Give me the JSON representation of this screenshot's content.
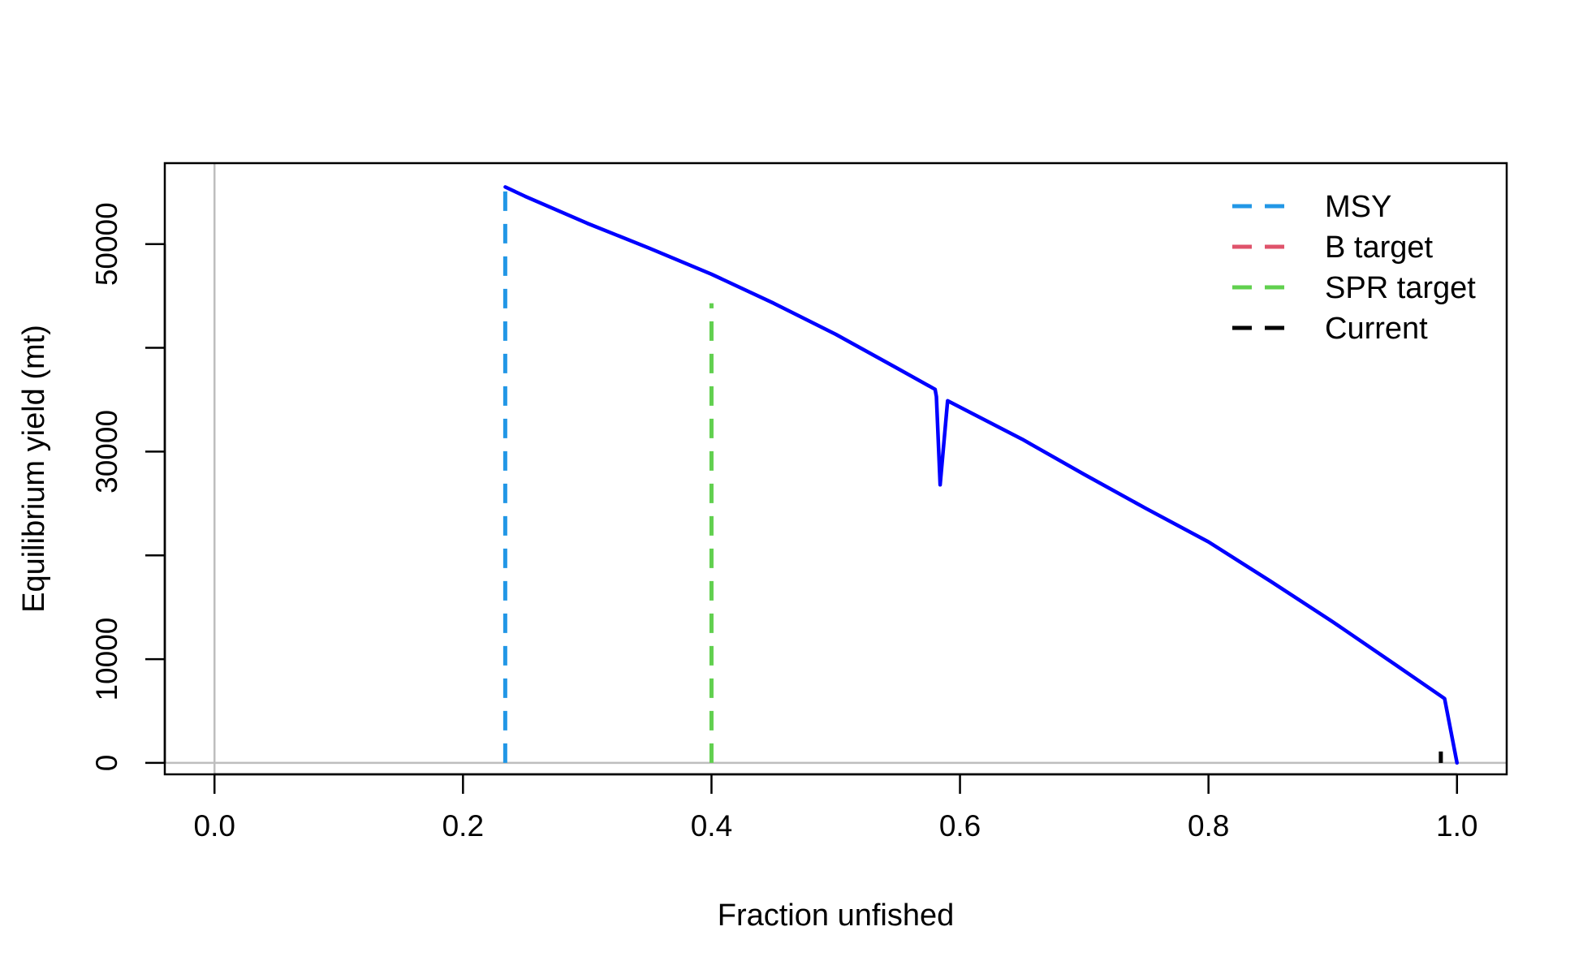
{
  "chart_data": {
    "type": "line",
    "title": "",
    "xlabel": "Fraction unfished",
    "ylabel": "Equilibrium yield (mt)",
    "xlim": [
      -0.04,
      1.04
    ],
    "ylim": [
      -1100,
      57800
    ],
    "x_ticks": [
      0.0,
      0.2,
      0.4,
      0.6,
      0.8,
      1.0
    ],
    "x_tick_labels": [
      "0.0",
      "0.2",
      "0.4",
      "0.6",
      "0.8",
      "1.0"
    ],
    "y_ticks": [
      0,
      10000,
      20000,
      30000,
      40000,
      50000
    ],
    "y_tick_labels": [
      "0",
      "10000",
      "",
      "30000",
      "",
      "50000"
    ],
    "reference_lines": {
      "x": 0,
      "y": 0,
      "color": "#bebebe"
    },
    "series": [
      {
        "name": "",
        "color": "#0000ff",
        "x": [
          0.234,
          0.25,
          0.3,
          0.35,
          0.4,
          0.45,
          0.5,
          0.55,
          0.58,
          0.581,
          0.584,
          0.59,
          0.65,
          0.7,
          0.75,
          0.8,
          0.85,
          0.9,
          0.95,
          0.99,
          1.0
        ],
        "y": [
          55500,
          54600,
          52000,
          49600,
          47100,
          44300,
          41300,
          38000,
          36000,
          35300,
          26800,
          34900,
          31200,
          27800,
          24500,
          21300,
          17500,
          13600,
          9500,
          6200,
          0
        ]
      }
    ],
    "vertical_markers": [
      {
        "name": "MSY",
        "x": 0.234,
        "y": 55500,
        "color": "#2297e6"
      },
      {
        "name": "SPR target",
        "x": 0.4,
        "y": 44300,
        "color": "#61d04f"
      },
      {
        "name": "Current",
        "x": 0.987,
        "y": 1100,
        "color": "#000000"
      }
    ],
    "legend": {
      "position": "top-right",
      "entries": [
        {
          "label": "MSY",
          "color": "#2297e6",
          "style": "dashed"
        },
        {
          "label": "B target",
          "color": "#df536b",
          "style": "dashed"
        },
        {
          "label": "SPR target",
          "color": "#61d04f",
          "style": "dashed"
        },
        {
          "label": "Current",
          "color": "#000000",
          "style": "dashed"
        }
      ]
    }
  }
}
